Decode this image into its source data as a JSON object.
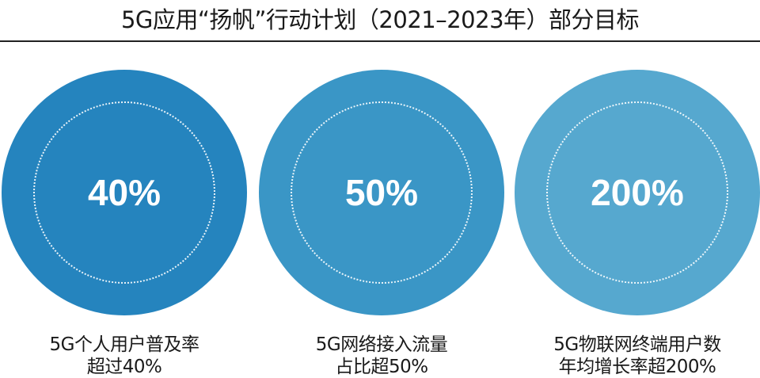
{
  "title": "5G应用“扬帆”行动计划（2021–2023年）部分目标",
  "targets": [
    {
      "value": "40%",
      "line1": "5G个人用户普及率",
      "line2": "超过40%",
      "color": "#2584be"
    },
    {
      "value": "50%",
      "line1": "5G网络接入流量",
      "line2": "占比超50%",
      "color": "#3a96c6"
    },
    {
      "value": "200%",
      "line1": "5G物联网终端用户数",
      "line2": "年均增长率超200%",
      "color": "#56a8cf"
    }
  ]
}
